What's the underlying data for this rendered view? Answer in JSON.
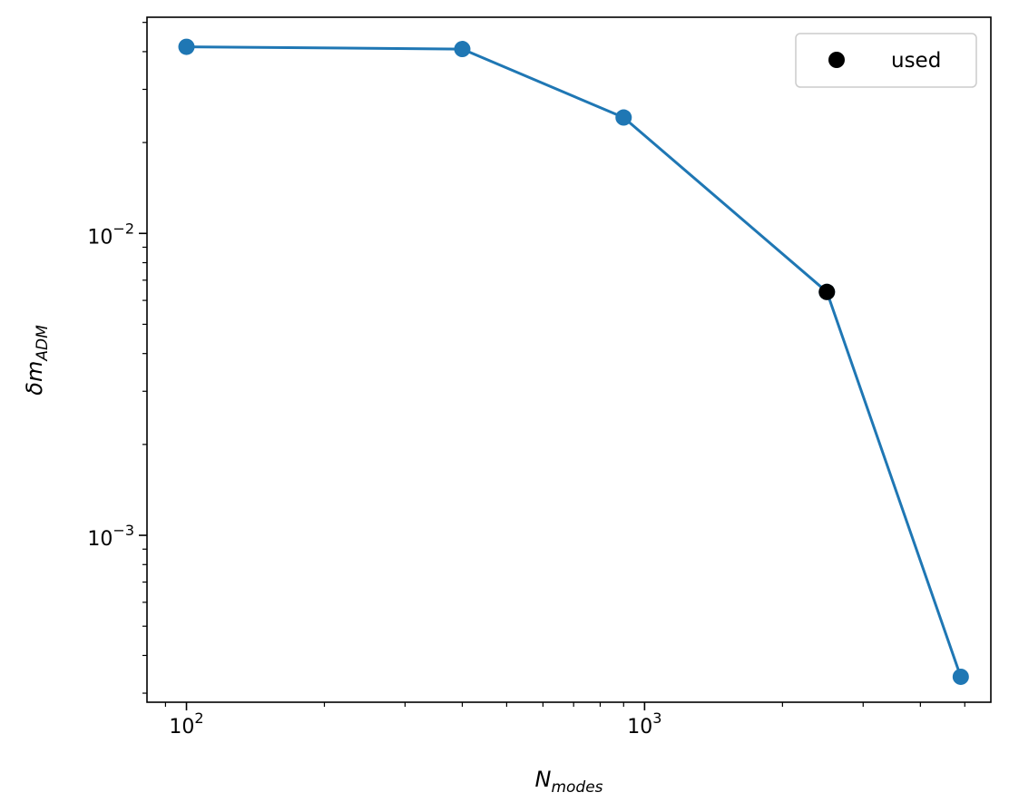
{
  "chart_data": {
    "type": "line",
    "xscale": "log",
    "yscale": "log",
    "xlim": [
      82,
      5700
    ],
    "ylim": [
      0.00028,
      0.052
    ],
    "grid": false,
    "xlabel": {
      "main": "N",
      "sub": "modes"
    },
    "ylabel": {
      "main": "δm",
      "sub": "ADM"
    },
    "x_ticks": [
      {
        "value": 100,
        "base": "10",
        "exp": "2"
      },
      {
        "value": 1000,
        "base": "10",
        "exp": "3"
      }
    ],
    "y_ticks": [
      {
        "value": 0.001,
        "base": "10",
        "exp": "−3"
      },
      {
        "value": 0.01,
        "base": "10",
        "exp": "−2"
      }
    ],
    "series": [
      {
        "color": "#1f77b4",
        "x": [
          100,
          400,
          900,
          2500,
          4900
        ],
        "y": [
          0.0415,
          0.0408,
          0.0242,
          0.0064,
          0.00034
        ]
      }
    ],
    "highlight": {
      "name": "used",
      "color": "#000000",
      "x": 2500,
      "y": 0.0064
    },
    "legend": {
      "position": "top-right",
      "entries": [
        {
          "label": "used",
          "color": "#000000",
          "marker": "circle"
        }
      ]
    }
  }
}
